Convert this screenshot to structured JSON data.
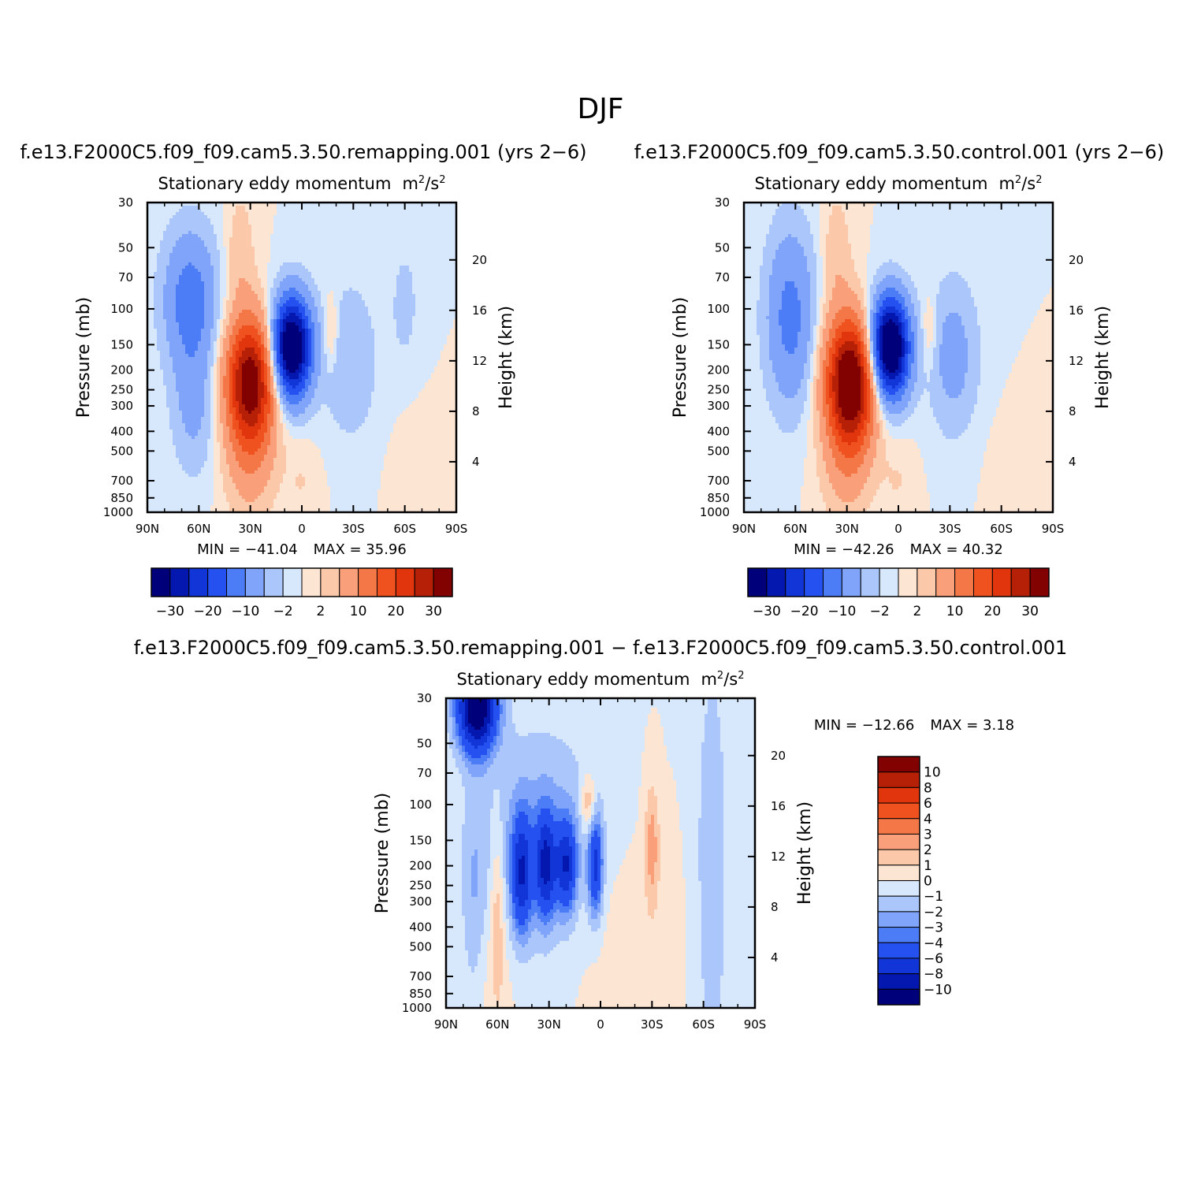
{
  "figure": {
    "title": "DJF"
  },
  "colors": {
    "diverging": [
      "#00007a",
      "#0418b0",
      "#1235d8",
      "#2551f0",
      "#4d7df6",
      "#7fa4fa",
      "#aac6fb",
      "#d7e8fd",
      "#fde5d3",
      "#fcc8aa",
      "#f9a07a",
      "#f47847",
      "#f0521f",
      "#e0350d",
      "#b62006",
      "#820202"
    ]
  },
  "chart_data": [
    {
      "type": "contour",
      "panel_title": "f.e13.F2000C5.f09_f09.cam5.3.50.remapping.001 (yrs 2−6)",
      "subtitle": "Stationary eddy momentum",
      "units_base": "m",
      "units_exp": "2",
      "units_mid": "/s",
      "xlabel": "",
      "ylabel": "Pressure (mb)",
      "y2label": "Height (km)",
      "x_ticks": [
        "90N",
        "60N",
        "30N",
        "0",
        "30S",
        "60S",
        "90S"
      ],
      "x_range": [
        90,
        -90
      ],
      "y_ticks": [
        30,
        50,
        70,
        100,
        150,
        200,
        250,
        300,
        400,
        500,
        700,
        850,
        1000
      ],
      "y_range": [
        30,
        1000
      ],
      "y2_ticks": [
        20,
        16,
        12,
        8,
        4
      ],
      "min_label": "MIN = −41.04",
      "max_label": "MAX =  35.96",
      "stats": {
        "min": -41.04,
        "max": 35.96
      },
      "colorbar": {
        "orientation": "horizontal",
        "levels": [
          -30,
          -25,
          -20,
          -15,
          -10,
          -5,
          -2,
          0,
          2,
          5,
          10,
          15,
          20,
          25,
          30
        ],
        "labels": [
          "−30",
          "−20",
          "−10",
          "−2",
          "2",
          "10",
          "20",
          "30"
        ]
      },
      "features": [
        {
          "lat": 65,
          "p": 90,
          "sx": 11,
          "sy": 0.55,
          "amp": -13
        },
        {
          "lat": 63,
          "p": 300,
          "sx": 9,
          "sy": 0.55,
          "amp": -6
        },
        {
          "lat": 30,
          "p": 230,
          "sx": 10,
          "sy": 0.5,
          "amp": 35
        },
        {
          "lat": 30,
          "p": 600,
          "sx": 10,
          "sy": 0.45,
          "amp": 6
        },
        {
          "lat": 36,
          "p": 55,
          "sx": 6,
          "sy": 0.5,
          "amp": 4
        },
        {
          "lat": 6,
          "p": 155,
          "sx": 8,
          "sy": 0.4,
          "amp": -41
        },
        {
          "lat": -17,
          "p": 130,
          "sx": 3,
          "sy": 0.3,
          "amp": 5
        },
        {
          "lat": -28,
          "p": 180,
          "sx": 11,
          "sy": 0.6,
          "amp": -5
        },
        {
          "lat": -60,
          "p": 95,
          "sx": 6,
          "sy": 0.5,
          "amp": -3
        },
        {
          "lat": -70,
          "p": 650,
          "sx": 10,
          "sy": 0.4,
          "amp": 2
        },
        {
          "lat": 0,
          "p": 700,
          "sx": 7,
          "sy": 0.35,
          "amp": 2
        }
      ]
    },
    {
      "type": "contour",
      "panel_title": "f.e13.F2000C5.f09_f09.cam5.3.50.control.001 (yrs 2−6)",
      "subtitle": "Stationary eddy momentum",
      "units_base": "m",
      "units_exp": "2",
      "units_mid": "/s",
      "xlabel": "",
      "ylabel": "Pressure (mb)",
      "y2label": "Height (km)",
      "x_ticks": [
        "90N",
        "60N",
        "30N",
        "0",
        "30S",
        "60S",
        "90S"
      ],
      "x_range": [
        90,
        -90
      ],
      "y_ticks": [
        30,
        50,
        70,
        100,
        150,
        200,
        250,
        300,
        400,
        500,
        700,
        850,
        1000
      ],
      "y_range": [
        30,
        1000
      ],
      "y2_ticks": [
        20,
        16,
        12,
        8,
        4
      ],
      "min_label": "MIN = −42.26",
      "max_label": "MAX =  40.32",
      "stats": {
        "min": -42.26,
        "max": 40.32
      },
      "colorbar": {
        "orientation": "horizontal",
        "levels": [
          -30,
          -25,
          -20,
          -15,
          -10,
          -5,
          -2,
          0,
          2,
          5,
          10,
          15,
          20,
          25,
          30
        ],
        "labels": [
          "−30",
          "−20",
          "−10",
          "−2",
          "2",
          "10",
          "20",
          "30"
        ]
      },
      "features": [
        {
          "lat": 63,
          "p": 110,
          "sx": 10,
          "sy": 0.7,
          "amp": -12
        },
        {
          "lat": 28,
          "p": 230,
          "sx": 10,
          "sy": 0.5,
          "amp": 40
        },
        {
          "lat": 30,
          "p": 600,
          "sx": 10,
          "sy": 0.45,
          "amp": 6
        },
        {
          "lat": 36,
          "p": 55,
          "sx": 6,
          "sy": 0.5,
          "amp": 4
        },
        {
          "lat": 5,
          "p": 155,
          "sx": 8,
          "sy": 0.4,
          "amp": -42
        },
        {
          "lat": -18,
          "p": 130,
          "sx": 3,
          "sy": 0.3,
          "amp": 4
        },
        {
          "lat": -32,
          "p": 170,
          "sx": 10,
          "sy": 0.6,
          "amp": -7
        },
        {
          "lat": -70,
          "p": 650,
          "sx": 10,
          "sy": 0.4,
          "amp": 2
        },
        {
          "lat": 0,
          "p": 700,
          "sx": 7,
          "sy": 0.35,
          "amp": 2
        }
      ]
    },
    {
      "type": "contour",
      "panel_title": "f.e13.F2000C5.f09_f09.cam5.3.50.remapping.001 − f.e13.F2000C5.f09_f09.cam5.3.50.control.001",
      "subtitle": "Stationary eddy momentum",
      "units_base": "m",
      "units_exp": "2",
      "units_mid": "/s",
      "xlabel": "",
      "ylabel": "Pressure (mb)",
      "y2label": "Height (km)",
      "x_ticks": [
        "90N",
        "60N",
        "30N",
        "0",
        "30S",
        "60S",
        "90S"
      ],
      "x_range": [
        90,
        -90
      ],
      "y_ticks": [
        30,
        50,
        70,
        100,
        150,
        200,
        250,
        300,
        400,
        500,
        700,
        850,
        1000
      ],
      "y_range": [
        30,
        1000
      ],
      "y2_ticks": [
        20,
        16,
        12,
        8,
        4
      ],
      "min_label": "MIN = −12.66",
      "max_label": "MAX =   3.18",
      "stats": {
        "min": -12.66,
        "max": 3.18
      },
      "colorbar": {
        "orientation": "vertical",
        "levels": [
          -10,
          -8,
          -6,
          -4,
          -3,
          -2,
          -1,
          0,
          1,
          2,
          3,
          4,
          6,
          8,
          10
        ],
        "labels": [
          "10",
          "8",
          "6",
          "4",
          "3",
          "2",
          "1",
          "0",
          "−1",
          "−2",
          "−3",
          "−4",
          "−6",
          "−8",
          "−10"
        ]
      },
      "features": [
        {
          "lat": 72,
          "p": 33,
          "sx": 8,
          "sy": 0.35,
          "amp": -12.5
        },
        {
          "lat": 74,
          "p": 300,
          "sx": 5,
          "sy": 1.0,
          "amp": -1.5
        },
        {
          "lat": 60,
          "p": 320,
          "sx": 3,
          "sy": 0.7,
          "amp": 2.2
        },
        {
          "lat": 46,
          "p": 220,
          "sx": 4,
          "sy": 0.45,
          "amp": -6.5
        },
        {
          "lat": 32,
          "p": 200,
          "sx": 4,
          "sy": 0.4,
          "amp": -7
        },
        {
          "lat": 20,
          "p": 200,
          "sx": 4,
          "sy": 0.35,
          "amp": -6.5
        },
        {
          "lat": 35,
          "p": 150,
          "sx": 25,
          "sy": 0.9,
          "amp": -2.5
        },
        {
          "lat": 3,
          "p": 200,
          "sx": 3,
          "sy": 0.4,
          "amp": -6
        },
        {
          "lat": 7,
          "p": 100,
          "sx": 3,
          "sy": 0.25,
          "amp": 2.8
        },
        {
          "lat": -30,
          "p": 160,
          "sx": 3,
          "sy": 0.5,
          "amp": 2.5
        },
        {
          "lat": -65,
          "p": 200,
          "sx": 7,
          "sy": 1.8,
          "amp": -1.8
        },
        {
          "lat": -8,
          "p": 400,
          "sx": 25,
          "sy": 0.8,
          "amp": 0.6
        },
        {
          "lat": 62,
          "p": 700,
          "sx": 10,
          "sy": 0.5,
          "amp": 0.6
        }
      ]
    }
  ]
}
